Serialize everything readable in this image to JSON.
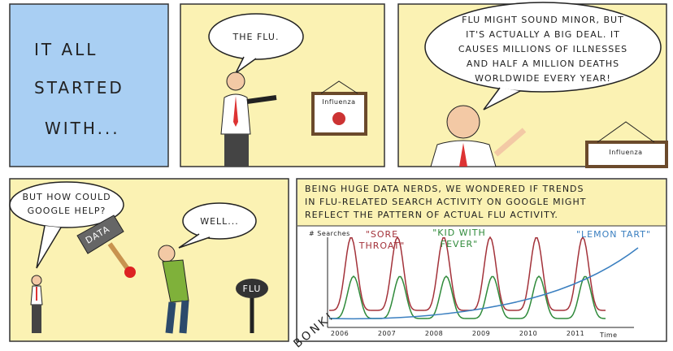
{
  "panels": [
    {
      "caption": [
        "IT ALL",
        "STARTED",
        "WITH..."
      ]
    },
    {
      "speech": [
        "THE FLU."
      ],
      "sign": "Influenza"
    },
    {
      "speech": [
        "FLU MIGHT SOUND MINOR, BUT",
        "IT'S ACTUALLY A BIG DEAL. IT",
        "CAUSES MILLIONS OF ILLNESSES",
        "AND HALF A MILLION DEATHS",
        "WORLDWIDE EVERY YEAR!"
      ],
      "sign": "Influenza"
    },
    {
      "speech_left": [
        "BUT HOW COULD",
        "GOOGLE HELP?"
      ],
      "speech_right": [
        "WELL..."
      ],
      "hammer": "DATA",
      "sign": "FLU"
    },
    {
      "caption": [
        "BEING HUGE DATA NERDS, WE WONDERED IF TRENDS",
        "IN FLU-RELATED SEARCH ACTIVITY ON GOOGLE MIGHT",
        "REFLECT THE PATTERN OF ACTUAL FLU ACTIVITY."
      ],
      "sound": "BONK!",
      "chart": {
        "y_label": "# Searches",
        "x_label": "Time",
        "x_labels": [
          "2006",
          "2007",
          "2008",
          "2009",
          "2010",
          "2011"
        ],
        "series": [
          {
            "name": [
              "\"SORE",
              "THROAT\""
            ],
            "color": "#a3323a"
          },
          {
            "name": [
              "\"KID WITH",
              "FEVER\""
            ],
            "color": "#2f8a3a"
          },
          {
            "name": [
              "\"LEMON TART\""
            ],
            "color": "#3a7fc0"
          }
        ]
      }
    }
  ]
}
